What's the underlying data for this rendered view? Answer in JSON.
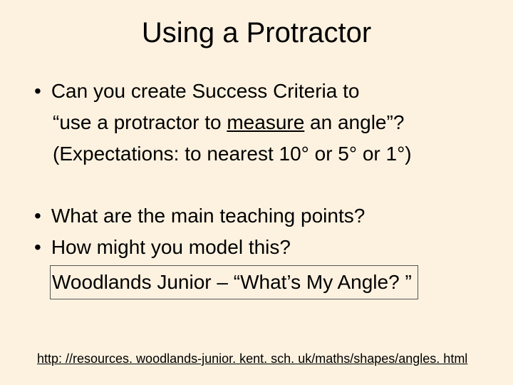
{
  "title": "Using a Protractor",
  "bullets": {
    "b1": "Can you create Success Criteria to",
    "b1_line2a": "“use a protractor to ",
    "b1_line2_underlined": "measure",
    "b1_line2b": " an angle”?",
    "b1_line3": "(Expectations: to nearest 10° or 5° or 1°)",
    "b2": "What are the main teaching points?",
    "b3": "How might you model this?",
    "boxed": "Woodlands Junior – “What’s My Angle? ”"
  },
  "link": "http: //resources. woodlands-junior. kent. sch. uk/maths/shapes/angles. html",
  "colors": {
    "background": "#fdf2e0",
    "text": "#000000",
    "box_border": "#555555"
  },
  "fonts": {
    "title_size": 40,
    "body_size": 28,
    "link_size": 18,
    "family": "Arial"
  }
}
